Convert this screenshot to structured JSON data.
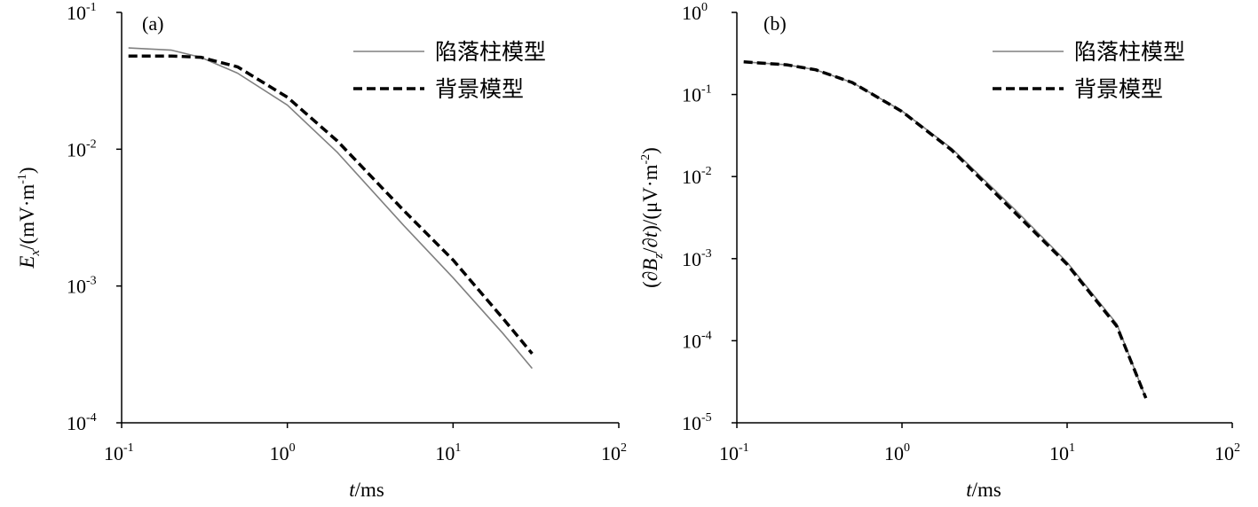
{
  "chart_data": [
    {
      "type": "line",
      "panel_label": "(a)",
      "x_scale": "log",
      "y_scale": "log",
      "xlim": [
        0.1,
        100
      ],
      "ylim": [
        0.0001,
        0.1
      ],
      "x_ticks": [
        {
          "base": "10",
          "exp": "-1"
        },
        {
          "base": "10",
          "exp": "0"
        },
        {
          "base": "10",
          "exp": "1"
        },
        {
          "base": "10",
          "exp": "2"
        }
      ],
      "y_ticks": [
        {
          "base": "10",
          "exp": "-4"
        },
        {
          "base": "10",
          "exp": "-3"
        },
        {
          "base": "10",
          "exp": "-2"
        },
        {
          "base": "10",
          "exp": "-1"
        }
      ],
      "xlabel": {
        "var": "t",
        "unit": "/ms"
      },
      "ylabel": {
        "var": "E",
        "sub": "x",
        "unit_pre": "/(mV·m",
        "unit_exp": "-1",
        "unit_post": ")"
      },
      "legend": {
        "position": "top-right"
      },
      "series": [
        {
          "name": "陷落柱模型",
          "style": "solid",
          "color": "#808080",
          "x": [
            0.11,
            0.2,
            0.3,
            0.5,
            1.0,
            2.0,
            5.0,
            10,
            20,
            30
          ],
          "y": [
            0.055,
            0.053,
            0.047,
            0.036,
            0.021,
            0.0095,
            0.0028,
            0.00115,
            0.00045,
            0.00025
          ]
        },
        {
          "name": "背景模型",
          "style": "dashed",
          "color": "#000000",
          "x": [
            0.11,
            0.2,
            0.3,
            0.5,
            1.0,
            2.0,
            5.0,
            10,
            20,
            30
          ],
          "y": [
            0.048,
            0.048,
            0.047,
            0.04,
            0.024,
            0.0115,
            0.0036,
            0.00155,
            0.00058,
            0.00032
          ]
        }
      ]
    },
    {
      "type": "line",
      "panel_label": "(b)",
      "x_scale": "log",
      "y_scale": "log",
      "xlim": [
        0.1,
        100
      ],
      "ylim": [
        1e-05,
        1
      ],
      "x_ticks": [
        {
          "base": "10",
          "exp": "-1"
        },
        {
          "base": "10",
          "exp": "0"
        },
        {
          "base": "10",
          "exp": "1"
        },
        {
          "base": "10",
          "exp": "2"
        }
      ],
      "y_ticks": [
        {
          "base": "10",
          "exp": "-5"
        },
        {
          "base": "10",
          "exp": "-4"
        },
        {
          "base": "10",
          "exp": "-3"
        },
        {
          "base": "10",
          "exp": "-2"
        },
        {
          "base": "10",
          "exp": "-1"
        },
        {
          "base": "10",
          "exp": "0"
        }
      ],
      "xlabel": {
        "var": "t",
        "unit": "/ms"
      },
      "ylabel": {
        "open": "(∂",
        "var": "B",
        "sub": "z",
        "mid": "/∂",
        "var2": "t",
        "unit_pre": ")/(μV·m",
        "unit_exp": "-2",
        "unit_post": ")"
      },
      "legend": {
        "position": "top-right"
      },
      "series": [
        {
          "name": "陷落柱模型",
          "style": "solid",
          "color": "#808080",
          "x": [
            0.11,
            0.2,
            0.3,
            0.5,
            1.0,
            2.0,
            5.0,
            10,
            20,
            30
          ],
          "y": [
            0.25,
            0.23,
            0.2,
            0.14,
            0.063,
            0.022,
            0.0037,
            0.0009,
            0.00016,
            2e-05
          ]
        },
        {
          "name": "背景模型",
          "style": "dashed",
          "color": "#000000",
          "x": [
            0.11,
            0.2,
            0.3,
            0.5,
            1.0,
            2.0,
            5.0,
            10,
            20,
            30
          ],
          "y": [
            0.25,
            0.23,
            0.2,
            0.14,
            0.062,
            0.021,
            0.0034,
            0.00085,
            0.00015,
            2e-05
          ]
        }
      ]
    }
  ]
}
